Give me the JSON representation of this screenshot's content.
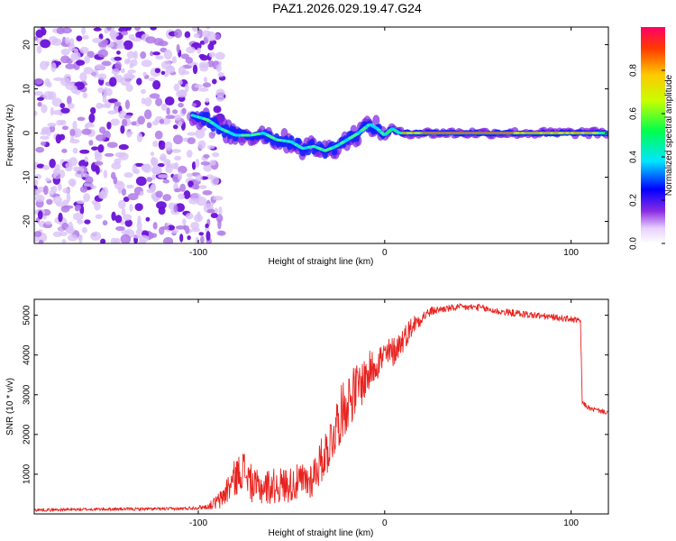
{
  "title": "PAZ1.2026.029.19.47.G24",
  "chart_data": [
    {
      "type": "heatmap",
      "name": "spectrogram",
      "xlabel": "Height of straight line (km)",
      "ylabel": "Frequency (Hz)",
      "xlim": [
        -188,
        120
      ],
      "ylim": [
        -25,
        24
      ],
      "x_ticks": [
        -100,
        0,
        100
      ],
      "y_ticks": [
        -20,
        -10,
        0,
        10,
        20
      ],
      "noise_region_x": [
        -188,
        -95
      ],
      "ridge": {
        "x": [
          -103,
          -95,
          -88,
          -80,
          -72,
          -65,
          -58,
          -50,
          -44,
          -38,
          -32,
          -26,
          -20,
          -14,
          -8,
          -4,
          0,
          4,
          8,
          14,
          20,
          40,
          60,
          80,
          100,
          120
        ],
        "freq_hz": [
          4,
          3,
          1,
          -0.5,
          -0.5,
          0,
          -1.5,
          -2,
          -3.5,
          -3,
          -4,
          -3,
          -1.5,
          0,
          2,
          1,
          -0.5,
          1,
          0,
          0,
          0,
          0,
          0,
          0,
          0,
          0
        ]
      },
      "colorbar": {
        "label": "Normalized spectral amplitude",
        "range": [
          0,
          1
        ],
        "ticks": [
          "0.0",
          "0.2",
          "0.4",
          "0.6",
          "0.8"
        ]
      }
    },
    {
      "type": "line",
      "name": "snr",
      "xlabel": "Height of straight line (km)",
      "ylabel": "SNR (10 * v/v)",
      "xlim": [
        -188,
        120
      ],
      "ylim": [
        0,
        5400
      ],
      "x_ticks": [
        -100,
        0,
        100
      ],
      "y_ticks": [
        1000,
        2000,
        3000,
        4000,
        5000
      ],
      "color": "#e8231f",
      "series": [
        {
          "name": "SNR",
          "x": [
            -188,
            -150,
            -110,
            -95,
            -88,
            -82,
            -76,
            -70,
            -60,
            -50,
            -40,
            -35,
            -30,
            -25,
            -20,
            -15,
            -10,
            -5,
            0,
            5,
            10,
            15,
            20,
            25,
            30,
            40,
            50,
            60,
            70,
            80,
            90,
            100,
            105,
            106,
            110,
            120
          ],
          "y": [
            100,
            120,
            130,
            180,
            350,
            800,
            1150,
            650,
            700,
            750,
            850,
            1250,
            1700,
            2350,
            2850,
            3150,
            3450,
            3800,
            3950,
            4100,
            4400,
            4750,
            4950,
            5100,
            5150,
            5200,
            5200,
            5100,
            5050,
            5000,
            4950,
            4900,
            4850,
            2800,
            2650,
            2550
          ],
          "noise_amplitude": [
            40,
            40,
            40,
            60,
            250,
            450,
            500,
            450,
            450,
            450,
            500,
            550,
            650,
            700,
            750,
            650,
            550,
            450,
            450,
            380,
            320,
            260,
            170,
            110,
            90,
            90,
            90,
            90,
            90,
            90,
            80,
            80,
            80,
            60,
            60,
            60
          ]
        }
      ]
    }
  ]
}
